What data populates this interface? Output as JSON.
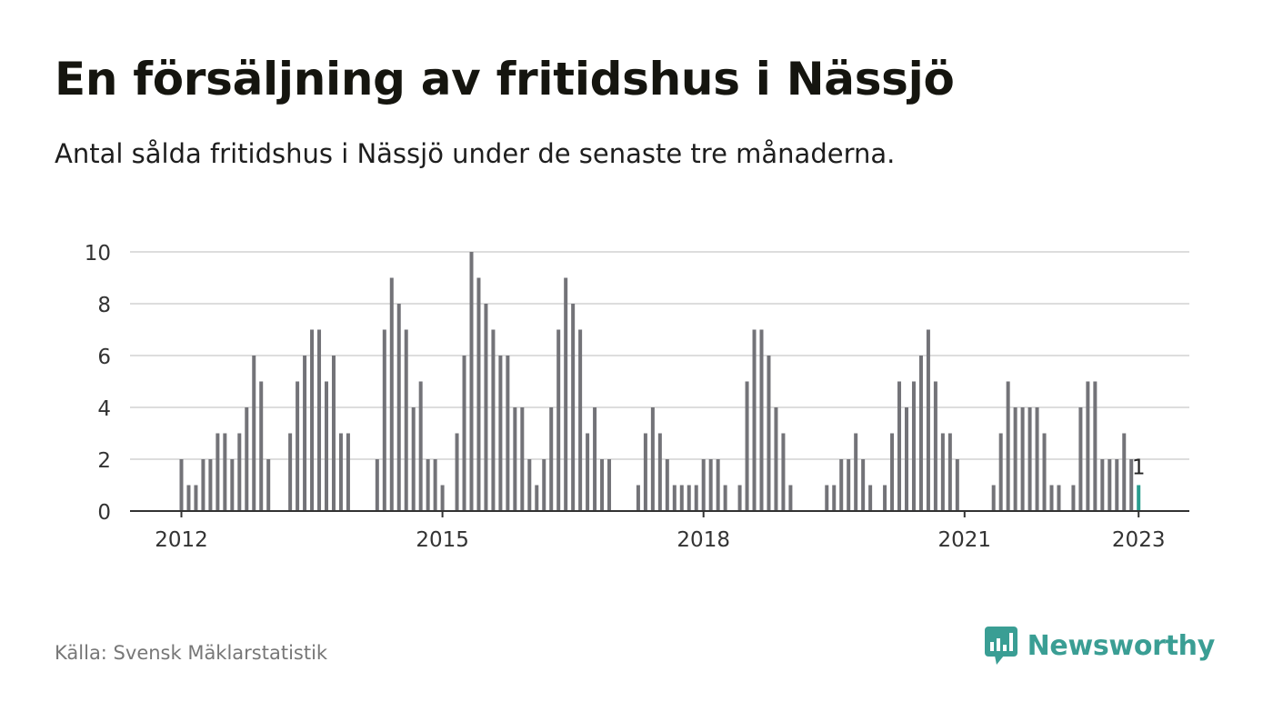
{
  "header": {
    "title": "En försäljning av fritidshus i Nässjö",
    "subtitle": "Antal sålda fritidshus i Nässjö under de senaste tre månaderna."
  },
  "footer": {
    "source": "Källa: Svensk Mäklarstatistik",
    "brand": "Newsworthy",
    "brand_icon": "bar-chart-speech-icon"
  },
  "colors": {
    "bar": "#737378",
    "highlight": "#2a9d8f",
    "grid": "#dddddd",
    "axis": "#333333",
    "brand": "#3a9e94"
  },
  "chart_data": {
    "type": "bar",
    "x_start": "2012-01",
    "x_end": "2023-01",
    "x_ticks": [
      "2012",
      "2015",
      "2018",
      "2021",
      "2023"
    ],
    "y_ticks": [
      0,
      2,
      4,
      6,
      8,
      10
    ],
    "ylim": [
      0,
      10
    ],
    "grid": true,
    "values": [
      2,
      1,
      1,
      2,
      2,
      3,
      3,
      2,
      3,
      4,
      6,
      5,
      2,
      0,
      0,
      3,
      5,
      6,
      7,
      7,
      5,
      6,
      3,
      3,
      0,
      0,
      0,
      2,
      7,
      9,
      8,
      7,
      4,
      5,
      2,
      2,
      1,
      0,
      3,
      6,
      10,
      9,
      8,
      7,
      6,
      6,
      4,
      4,
      2,
      1,
      2,
      4,
      7,
      9,
      8,
      7,
      3,
      4,
      2,
      2,
      0,
      0,
      0,
      1,
      3,
      4,
      3,
      2,
      1,
      1,
      1,
      1,
      2,
      2,
      2,
      1,
      0,
      1,
      5,
      7,
      7,
      6,
      4,
      3,
      1,
      0,
      0,
      0,
      0,
      1,
      1,
      2,
      2,
      3,
      2,
      1,
      0,
      1,
      3,
      5,
      4,
      5,
      6,
      7,
      5,
      3,
      3,
      2,
      0,
      0,
      0,
      0,
      1,
      3,
      5,
      4,
      4,
      4,
      4,
      3,
      1,
      1,
      0,
      1,
      4,
      5,
      5,
      2,
      2,
      2,
      3,
      2,
      1
    ],
    "highlight_last": true,
    "last_label": "1"
  }
}
